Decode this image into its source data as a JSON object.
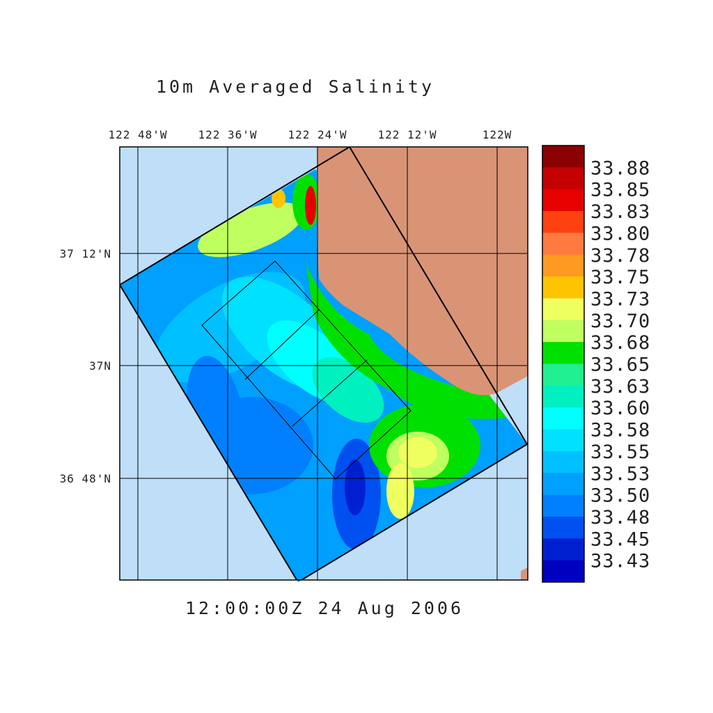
{
  "title": "10m Averaged Salinity",
  "timestamp": "12:00:00Z  24 Aug 2006",
  "lon_labels": [
    "122 48'W",
    "122 36'W",
    "122 24'W",
    "122 12'W",
    "122W"
  ],
  "lat_labels": [
    "37 12'N",
    "37N",
    "36 48'N"
  ],
  "colorbar": {
    "levels": [
      "33.88",
      "33.85",
      "33.83",
      "33.80",
      "33.78",
      "33.75",
      "33.73",
      "33.70",
      "33.68",
      "33.65",
      "33.63",
      "33.60",
      "33.58",
      "33.55",
      "33.53",
      "33.50",
      "33.48",
      "33.45",
      "33.43"
    ],
    "colors": [
      "#8b0000",
      "#c40000",
      "#e60000",
      "#ff4010",
      "#ff7a40",
      "#ff9a20",
      "#ffc400",
      "#f0ff60",
      "#c0ff60",
      "#00e000",
      "#20f090",
      "#00f0c0",
      "#00ffff",
      "#00e0ff",
      "#00c0ff",
      "#00a0ff",
      "#0080ff",
      "#0050f0",
      "#0020d0",
      "#0000c0"
    ]
  },
  "colors": {
    "ocean": "#bfdff8",
    "land": "#d99475",
    "grid": "#000000"
  }
}
